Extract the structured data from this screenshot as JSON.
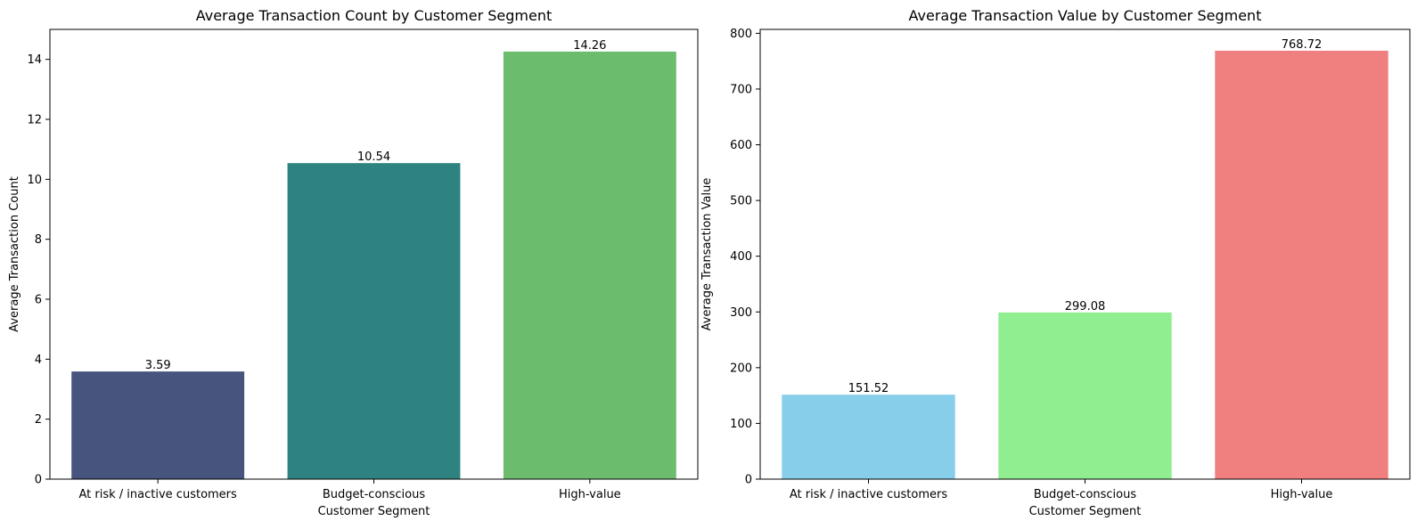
{
  "chart_data": [
    {
      "type": "bar",
      "title": "Average Transaction Count by Customer Segment",
      "xlabel": "Customer Segment",
      "ylabel": "Average Transaction Count",
      "categories": [
        "At risk / inactive customers",
        "Budget-conscious",
        "High-value"
      ],
      "values": [
        3.59,
        10.54,
        14.26
      ],
      "value_labels": [
        "3.59",
        "10.54",
        "14.26"
      ],
      "colors": [
        "#46547e",
        "#2e8380",
        "#6cbc6e"
      ],
      "ylim": [
        0,
        15
      ],
      "yticks": [
        0,
        2,
        4,
        6,
        8,
        10,
        12,
        14
      ],
      "grid": false,
      "legend": "none"
    },
    {
      "type": "bar",
      "title": "Average Transaction Value by Customer Segment",
      "xlabel": "Customer Segment",
      "ylabel": "Average Transaction Value",
      "categories": [
        "At risk / inactive customers",
        "Budget-conscious",
        "High-value"
      ],
      "values": [
        151.52,
        299.08,
        768.72
      ],
      "value_labels": [
        "151.52",
        "299.08",
        "768.72"
      ],
      "colors": [
        "#87ceeb",
        "#90ee90",
        "#f08080"
      ],
      "ylim": [
        0,
        807
      ],
      "yticks": [
        0,
        100,
        200,
        300,
        400,
        500,
        600,
        700,
        800
      ],
      "grid": false,
      "legend": "none"
    }
  ]
}
